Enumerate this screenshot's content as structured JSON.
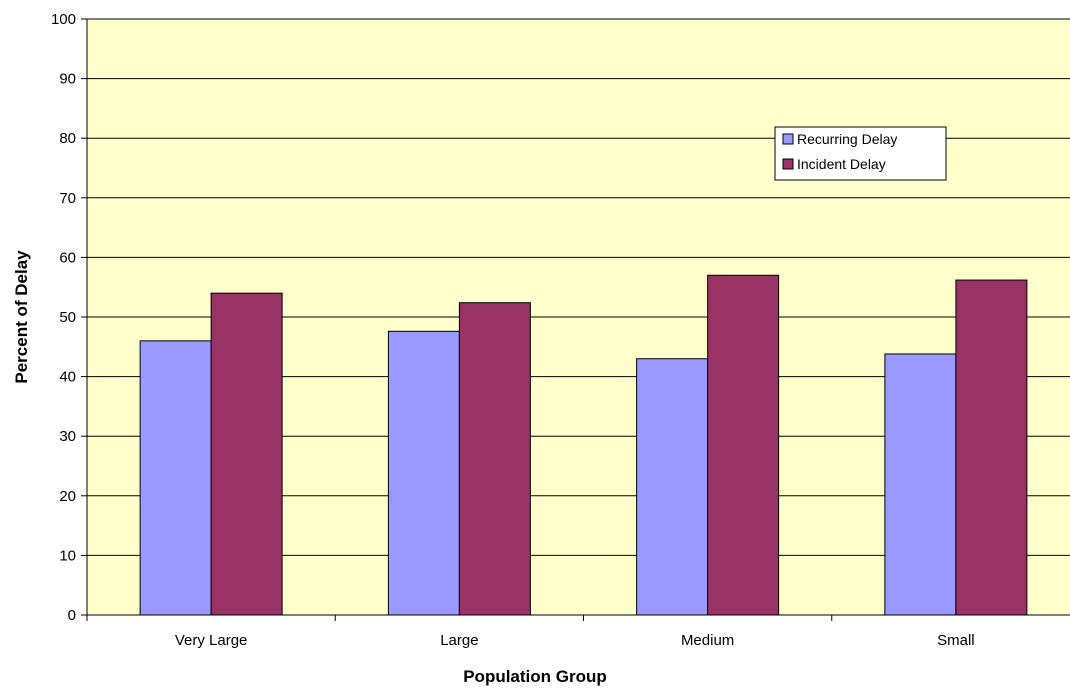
{
  "chart_data": {
    "type": "bar",
    "title": "",
    "xlabel": "Population Group",
    "ylabel": "Percent of Delay",
    "categories": [
      "Very Large",
      "Large",
      "Medium",
      "Small"
    ],
    "series": [
      {
        "name": "Recurring Delay",
        "values": [
          46,
          47.6,
          43,
          43.8
        ],
        "color": "#9999ff"
      },
      {
        "name": "Incident Delay",
        "values": [
          54,
          52.4,
          57,
          56.2
        ],
        "color": "#993366"
      }
    ],
    "ylim": [
      0,
      100
    ],
    "yticks": [
      0,
      10,
      20,
      30,
      40,
      50,
      60,
      70,
      80,
      90,
      100
    ],
    "grid": true,
    "legend_position": "upper-right",
    "plot_background": "#ffffcc"
  }
}
